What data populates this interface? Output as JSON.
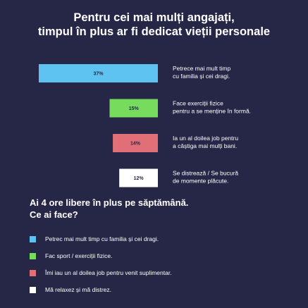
{
  "chart_data": {
    "type": "bar",
    "orientation": "horizontal",
    "title_lines": [
      "Pentru cei mai mulți angajați,",
      "timpul în plus ar fi dedicat vieții personale"
    ],
    "categories": [
      [
        "Petrece mai mult timp",
        "cu familia și cei dragi."
      ],
      [
        "Face exerciții fizice",
        "pentru a se menține în formă."
      ],
      [
        "Ia un al doilea job pentru",
        "a câștiga mai mulți bani."
      ],
      [
        "Se distrează / Se bucură",
        "de momente plăcute."
      ]
    ],
    "values": [
      37,
      15,
      14,
      12
    ],
    "value_labels": [
      "37%",
      "15%",
      "14%",
      "12%"
    ],
    "colors": [
      "#5ec3f0",
      "#77dc5e",
      "#e06f78",
      "#ffffff"
    ],
    "xlim": [
      0,
      37
    ],
    "grid": false
  },
  "question": {
    "lines": [
      "Ai 4 ore libere în plus pe săptămână.",
      "Ce ai face?"
    ]
  },
  "options": [
    {
      "label": "Petrec mai mult timp cu familia și cei dragi.",
      "color": "#5ec3f0"
    },
    {
      "label": "Fac sport / exerciții fizice.",
      "color": "#77dc5e"
    },
    {
      "label": "Îmi iau un al doilea job pentru venit suplimentar.",
      "color": "#e06f78"
    },
    {
      "label": "Mă relaxez și mă distrez.",
      "color": "#ffffff"
    }
  ]
}
